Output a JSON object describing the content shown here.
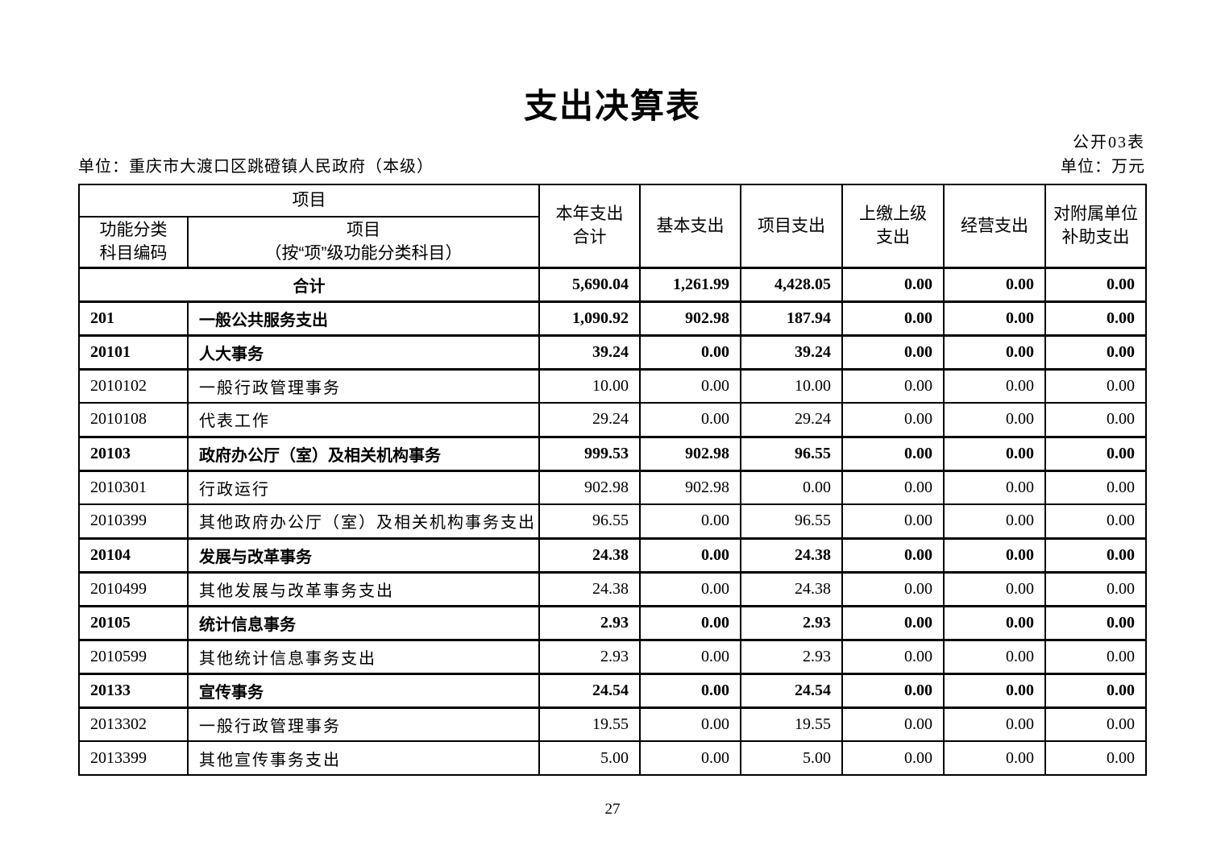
{
  "page": {
    "title": "支出决算表",
    "doc_label": "公开03表",
    "unit_line": "单位：重庆市大渡口区跳磴镇人民政府（本级）",
    "unit_label": "单位：万元",
    "page_number": "27"
  },
  "table": {
    "header": {
      "project_group": "项目",
      "col_code_line1": "功能分类",
      "col_code_line2": "科目编码",
      "col_name_line1": "项目",
      "col_name_line2": "（按“项”级功能分类科目）",
      "col_total_line1": "本年支出",
      "col_total_line2": "合计",
      "col_basic": "基本支出",
      "col_project": "项目支出",
      "col_upper_line1": "上缴上级",
      "col_upper_line2": "支出",
      "col_operating": "经营支出",
      "col_subsidy_line1": "对附属单位",
      "col_subsidy_line2": "补助支出"
    },
    "rows": [
      {
        "merged": true,
        "code": null,
        "name": "合计",
        "bold": true,
        "values": [
          "5,690.04",
          "1,261.99",
          "4,428.05",
          "0.00",
          "0.00",
          "0.00"
        ]
      },
      {
        "code": "201",
        "name": "一般公共服务支出",
        "bold": true,
        "values": [
          "1,090.92",
          "902.98",
          "187.94",
          "0.00",
          "0.00",
          "0.00"
        ]
      },
      {
        "code": "20101",
        "name": "人大事务",
        "bold": true,
        "values": [
          "39.24",
          "0.00",
          "39.24",
          "0.00",
          "0.00",
          "0.00"
        ]
      },
      {
        "code": "2010102",
        "name": "一般行政管理事务",
        "bold": false,
        "values": [
          "10.00",
          "0.00",
          "10.00",
          "0.00",
          "0.00",
          "0.00"
        ]
      },
      {
        "code": "2010108",
        "name": "代表工作",
        "bold": false,
        "values": [
          "29.24",
          "0.00",
          "29.24",
          "0.00",
          "0.00",
          "0.00"
        ]
      },
      {
        "code": "20103",
        "name": "政府办公厅（室）及相关机构事务",
        "bold": true,
        "values": [
          "999.53",
          "902.98",
          "96.55",
          "0.00",
          "0.00",
          "0.00"
        ]
      },
      {
        "code": "2010301",
        "name": "行政运行",
        "bold": false,
        "values": [
          "902.98",
          "902.98",
          "0.00",
          "0.00",
          "0.00",
          "0.00"
        ]
      },
      {
        "code": "2010399",
        "name": "其他政府办公厅（室）及相关机构事务支出",
        "bold": false,
        "values": [
          "96.55",
          "0.00",
          "96.55",
          "0.00",
          "0.00",
          "0.00"
        ]
      },
      {
        "code": "20104",
        "name": "发展与改革事务",
        "bold": true,
        "values": [
          "24.38",
          "0.00",
          "24.38",
          "0.00",
          "0.00",
          "0.00"
        ]
      },
      {
        "code": "2010499",
        "name": "其他发展与改革事务支出",
        "bold": false,
        "values": [
          "24.38",
          "0.00",
          "24.38",
          "0.00",
          "0.00",
          "0.00"
        ]
      },
      {
        "code": "20105",
        "name": "统计信息事务",
        "bold": true,
        "values": [
          "2.93",
          "0.00",
          "2.93",
          "0.00",
          "0.00",
          "0.00"
        ]
      },
      {
        "code": "2010599",
        "name": "其他统计信息事务支出",
        "bold": false,
        "values": [
          "2.93",
          "0.00",
          "2.93",
          "0.00",
          "0.00",
          "0.00"
        ]
      },
      {
        "code": "20133",
        "name": "宣传事务",
        "bold": true,
        "values": [
          "24.54",
          "0.00",
          "24.54",
          "0.00",
          "0.00",
          "0.00"
        ]
      },
      {
        "code": "2013302",
        "name": "一般行政管理事务",
        "bold": false,
        "values": [
          "19.55",
          "0.00",
          "19.55",
          "0.00",
          "0.00",
          "0.00"
        ]
      },
      {
        "code": "2013399",
        "name": "其他宣传事务支出",
        "bold": false,
        "values": [
          "5.00",
          "0.00",
          "5.00",
          "0.00",
          "0.00",
          "0.00"
        ]
      }
    ]
  }
}
